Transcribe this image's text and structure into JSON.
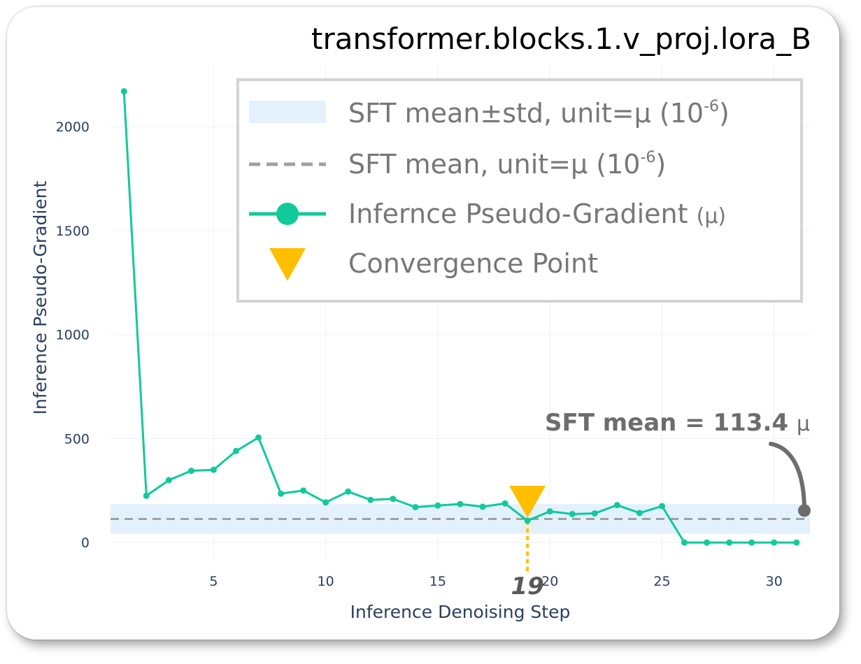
{
  "chart_data": {
    "type": "line",
    "title": "transformer.blocks.1.v_proj.lora_B",
    "xlabel": "Inference Denoising Step",
    "ylabel": "Inference Pseudo-Gradient",
    "xlim": [
      0.4,
      31.6
    ],
    "ylim": [
      -80,
      2300
    ],
    "x_ticks": [
      5,
      10,
      15,
      20,
      25,
      30
    ],
    "y_ticks": [
      0,
      500,
      1000,
      1500,
      2000
    ],
    "grid": true,
    "legend_position": "top-right",
    "legend": {
      "band_label": "SFT mean±std, unit=μ (10",
      "band_label_exp": "-6",
      "band_label_end": ")",
      "mean_label": "SFT mean, unit=μ (10",
      "mean_label_exp": "-6",
      "mean_label_end": ")",
      "series_label": "Infernce Pseudo-Gradient",
      "series_label_unit": "(μ)",
      "convergence_label": "Convergence Point"
    },
    "series": [
      {
        "name": "Infernce Pseudo-Gradient (μ)",
        "color": "#12c99b",
        "x": [
          1,
          2,
          3,
          4,
          5,
          6,
          7,
          8,
          9,
          10,
          11,
          12,
          13,
          14,
          15,
          16,
          17,
          18,
          19,
          20,
          21,
          22,
          23,
          24,
          25,
          26,
          27,
          28,
          29,
          30,
          31
        ],
        "y": [
          2170,
          225,
          300,
          345,
          350,
          440,
          505,
          235,
          250,
          193,
          245,
          205,
          210,
          170,
          178,
          185,
          172,
          188,
          105,
          150,
          137,
          140,
          180,
          142,
          175,
          0,
          0,
          0,
          0,
          0,
          0
        ]
      }
    ],
    "sft_mean": 113.4,
    "sft_band": [
      42,
      185
    ],
    "band_color": "#e3f1fd",
    "mean_line_color": "#a0a0a0",
    "convergence": {
      "x": 19,
      "label": "19",
      "color": "#ffbf00"
    },
    "annotation": {
      "text": "SFT mean = 113.4",
      "unit": "μ"
    }
  }
}
